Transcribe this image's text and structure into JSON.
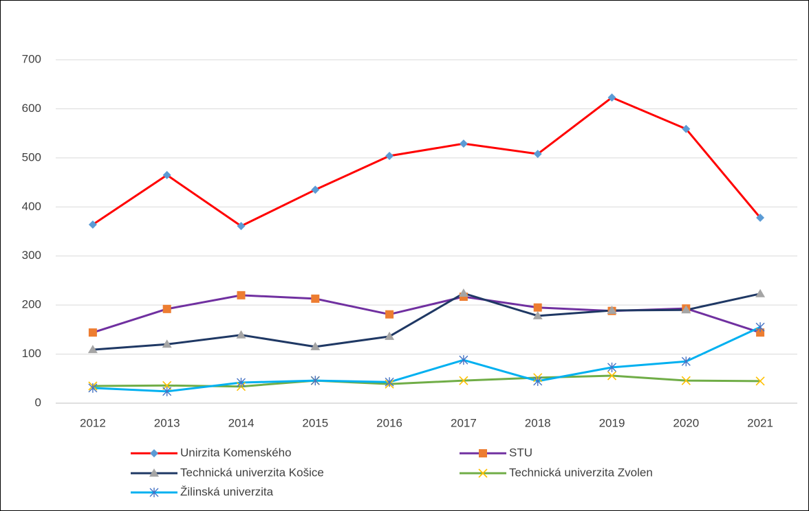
{
  "chart_data": {
    "type": "line",
    "categories": [
      "2012",
      "2013",
      "2014",
      "2015",
      "2016",
      "2017",
      "2018",
      "2019",
      "2020",
      "2021"
    ],
    "ylim": [
      0,
      700
    ],
    "yticks": [
      0,
      100,
      200,
      300,
      400,
      500,
      600,
      700
    ],
    "grid": true,
    "legend": "bottom",
    "series": [
      {
        "name": "Unirzita Komenského",
        "color": "#ff0000",
        "marker": "diamond",
        "marker_color": "#5b9bd5",
        "values": [
          364,
          465,
          361,
          435,
          504,
          529,
          508,
          623,
          559,
          378
        ]
      },
      {
        "name": "STU",
        "color": "#7030a0",
        "marker": "square",
        "marker_color": "#ed7d31",
        "values": [
          144,
          192,
          220,
          213,
          181,
          217,
          195,
          188,
          193,
          144
        ]
      },
      {
        "name": "Technická univerzita Košice",
        "color": "#1f3864",
        "marker": "triangle",
        "marker_color": "#a5a5a5",
        "values": [
          109,
          120,
          139,
          115,
          136,
          224,
          178,
          189,
          190,
          223
        ]
      },
      {
        "name": "Technická univerzita Zvolen",
        "color": "#70ad47",
        "marker": "x",
        "marker_color": "#ffc000",
        "values": [
          35,
          36,
          34,
          46,
          39,
          46,
          52,
          56,
          46,
          45
        ]
      },
      {
        "name": "Žilinská univerzita",
        "color": "#00b0f0",
        "marker": "asterisk",
        "marker_color": "#4472c4",
        "values": [
          31,
          24,
          42,
          46,
          43,
          88,
          45,
          73,
          85,
          155
        ]
      }
    ]
  }
}
